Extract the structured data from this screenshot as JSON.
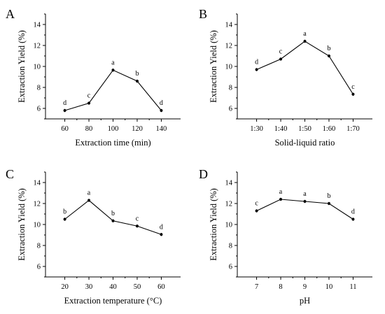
{
  "chart_data": [
    {
      "type": "line",
      "panel": "A",
      "x": [
        60,
        80,
        100,
        120,
        140
      ],
      "categories": [
        "60",
        "80",
        "100",
        "120",
        "140"
      ],
      "values": [
        5.8,
        6.5,
        9.65,
        8.6,
        5.8
      ],
      "labels": [
        "d",
        "c",
        "a",
        "b",
        "d"
      ],
      "xlabel": "Extraction time (min)",
      "ylabel": "Extraction Yield (%)",
      "yticks": [
        "6",
        "8",
        "10",
        "12",
        "14"
      ],
      "ylim": [
        5,
        15
      ]
    },
    {
      "type": "line",
      "panel": "B",
      "categories": [
        "1:30",
        "1:40",
        "1:50",
        "1:60",
        "1:70"
      ],
      "values": [
        9.7,
        10.7,
        12.4,
        11.0,
        7.35
      ],
      "labels": [
        "d",
        "c",
        "a",
        "b",
        "c"
      ],
      "xlabel": "Solid-liquid ratio",
      "ylabel": "Extraction Yield (%)",
      "yticks": [
        "6",
        "8",
        "10",
        "12",
        "14"
      ],
      "ylim": [
        5,
        15
      ]
    },
    {
      "type": "line",
      "panel": "C",
      "x": [
        20,
        30,
        40,
        50,
        60
      ],
      "categories": [
        "20",
        "30",
        "40",
        "50",
        "60"
      ],
      "values": [
        10.5,
        12.3,
        10.35,
        9.85,
        9.05
      ],
      "labels": [
        "b",
        "a",
        "b",
        "c",
        "d"
      ],
      "xlabel": "Extraction temperature (°C)",
      "ylabel": "Extraction Yield (%)",
      "yticks": [
        "6",
        "8",
        "10",
        "12",
        "14"
      ],
      "ylim": [
        5,
        15
      ]
    },
    {
      "type": "line",
      "panel": "D",
      "x": [
        7,
        8,
        9,
        10,
        11
      ],
      "categories": [
        "7",
        "8",
        "9",
        "10",
        "11"
      ],
      "values": [
        11.3,
        12.4,
        12.2,
        12.0,
        10.5
      ],
      "labels": [
        "c",
        "a",
        "a",
        "b",
        "d"
      ],
      "xlabel": "pH",
      "ylabel": "Extraction Yield (%)",
      "yticks": [
        "6",
        "8",
        "10",
        "12",
        "14"
      ],
      "ylim": [
        5,
        15
      ]
    }
  ]
}
